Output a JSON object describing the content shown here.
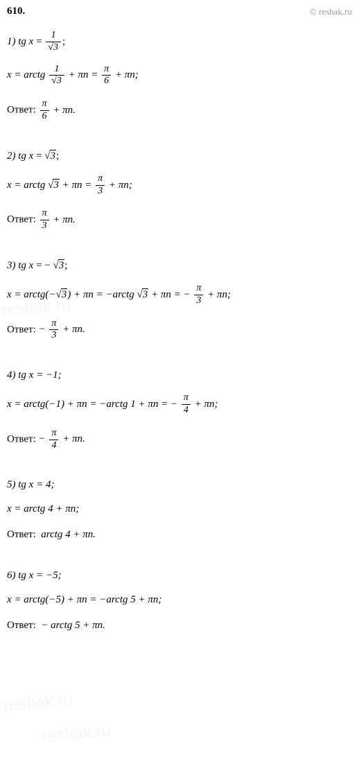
{
  "header": {
    "problem_number": "610.",
    "copyright": "© reshak.ru"
  },
  "problems": {
    "p1": {
      "label": "1)",
      "eq_lhs": "tg x",
      "eq_rhs_num": "1",
      "eq_rhs_den_rad": "3",
      "sol_prefix": "x = arctg",
      "sol_frac_num": "1",
      "sol_frac_den_rad": "3",
      "sol_mid": "+ πn =",
      "sol_res_num": "π",
      "sol_res_den": "6",
      "sol_suffix": "+ πn;",
      "ans_label": "Ответ:",
      "ans_num": "π",
      "ans_den": "6",
      "ans_suffix": "+ πn."
    },
    "p2": {
      "label": "2)",
      "eq_lhs": "tg x",
      "eq_rhs_rad": "3",
      "sol_prefix": "x = arctg",
      "sol_rad": "3",
      "sol_mid": "+ πn =",
      "sol_res_num": "π",
      "sol_res_den": "3",
      "sol_suffix": "+ πn;",
      "ans_label": "Ответ:",
      "ans_num": "π",
      "ans_den": "3",
      "ans_suffix": "+ πn."
    },
    "p3": {
      "label": "3)",
      "eq_lhs": "tg x",
      "eq_rhs_rad": "3",
      "sol_prefix": "x = arctg(−",
      "sol_rad1": "3",
      "sol_mid1": ") + πn = −arctg",
      "sol_rad2": "3",
      "sol_mid2": "+ πn = −",
      "sol_res_num": "π",
      "sol_res_den": "3",
      "sol_suffix": "+ πn;",
      "ans_label": "Ответ:",
      "ans_prefix": "−",
      "ans_num": "π",
      "ans_den": "3",
      "ans_suffix": "+ πn."
    },
    "p4": {
      "label": "4)",
      "eq": "tg x = −1;",
      "sol_prefix": "x = arctg(−1) + πn = −arctg 1 + πn = −",
      "sol_res_num": "π",
      "sol_res_den": "4",
      "sol_suffix": "+ πn;",
      "ans_label": "Ответ:",
      "ans_prefix": "−",
      "ans_num": "π",
      "ans_den": "4",
      "ans_suffix": "+ πn."
    },
    "p5": {
      "label": "5)",
      "eq": "tg x = 4;",
      "sol": "x = arctg 4 + πn;",
      "ans_label": "Ответ:",
      "ans": "arctg 4 + πn."
    },
    "p6": {
      "label": "6)",
      "eq": "tg x = −5;",
      "sol": "x = arctg(−5) + πn = −arctg 5 + πn;",
      "ans_label": "Ответ:",
      "ans": "− arctg 5 + πn."
    }
  },
  "watermark": "reshak.ru"
}
